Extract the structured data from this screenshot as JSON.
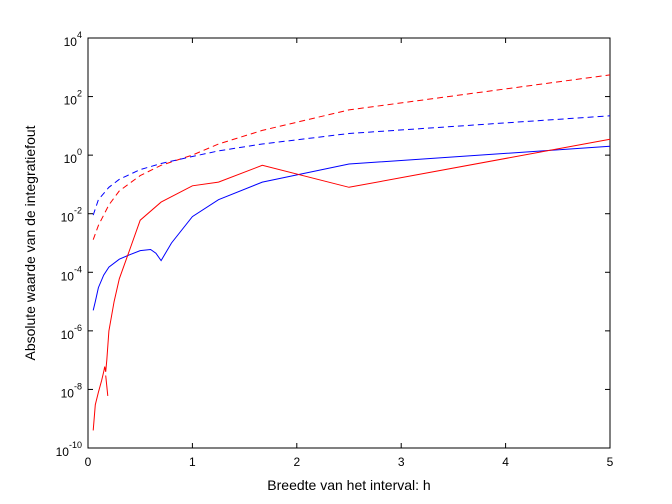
{
  "chart_data": {
    "type": "line",
    "xlabel": "Breedte van het interval: h",
    "ylabel": "Absolute waarde van de integratiefout",
    "xlim": [
      0,
      5
    ],
    "ylim": [
      1e-10,
      10000
    ],
    "yscale": "log",
    "grid": false,
    "x_ticks": [
      "0",
      "1",
      "2",
      "3",
      "4",
      "5"
    ],
    "y_ticks": [
      {
        "base": "10",
        "exp": "4"
      },
      {
        "base": "10",
        "exp": "2"
      },
      {
        "base": "10",
        "exp": "0"
      },
      {
        "base": "10",
        "exp": "-2"
      },
      {
        "base": "10",
        "exp": "-4"
      },
      {
        "base": "10",
        "exp": "-6"
      },
      {
        "base": "10",
        "exp": "-8"
      },
      {
        "base": "10",
        "exp": "-10"
      }
    ],
    "series": [
      {
        "color": "#ff0000",
        "style": "dashed",
        "x": [
          0.05,
          0.1,
          0.2,
          0.3,
          0.5,
          0.7,
          1.0,
          1.25,
          1.67,
          2.5,
          5.0
        ],
        "y": [
          0.0013,
          0.004,
          0.02,
          0.06,
          0.2,
          0.45,
          1.0,
          2.4,
          7.0,
          35,
          550
        ]
      },
      {
        "color": "#0000ff",
        "style": "dashed",
        "x": [
          0.05,
          0.1,
          0.2,
          0.3,
          0.5,
          0.7,
          1.0,
          1.25,
          1.67,
          2.5,
          5.0
        ],
        "y": [
          0.009,
          0.03,
          0.08,
          0.15,
          0.32,
          0.52,
          0.9,
          1.4,
          2.4,
          5.5,
          22
        ]
      },
      {
        "color": "#0000ff",
        "style": "solid",
        "x": [
          0.05,
          0.07,
          0.1,
          0.15,
          0.2,
          0.3,
          0.4,
          0.5,
          0.6,
          0.65,
          0.7,
          0.8,
          1.0,
          1.25,
          1.67,
          2.5,
          5.0
        ],
        "y": [
          5e-06,
          1e-05,
          3e-05,
          8e-05,
          0.00015,
          0.00028,
          0.0004,
          0.00055,
          0.0006,
          0.00045,
          0.00025,
          0.001,
          0.008,
          0.03,
          0.12,
          0.5,
          2.0
        ]
      },
      {
        "color": "#ff0000",
        "style": "solid",
        "x": [
          0.05,
          0.07,
          0.1,
          0.13,
          0.15,
          0.16,
          0.17,
          0.18,
          0.2,
          0.25,
          0.3,
          0.4,
          0.5,
          0.7,
          1.0,
          1.25,
          1.67,
          2.5,
          5.0
        ],
        "y": [
          4e-10,
          3e-09,
          8e-09,
          2e-08,
          4e-08,
          6e-08,
          4e-08,
          1e-07,
          1e-06,
          1e-05,
          6e-05,
          0.0006,
          0.006,
          0.025,
          0.09,
          0.12,
          0.45,
          0.08,
          3.5
        ]
      },
      {
        "color": "#ff0000",
        "style": "solid",
        "x": [
          0.17,
          0.19
        ],
        "y": [
          3e-08,
          6e-09
        ]
      }
    ]
  }
}
